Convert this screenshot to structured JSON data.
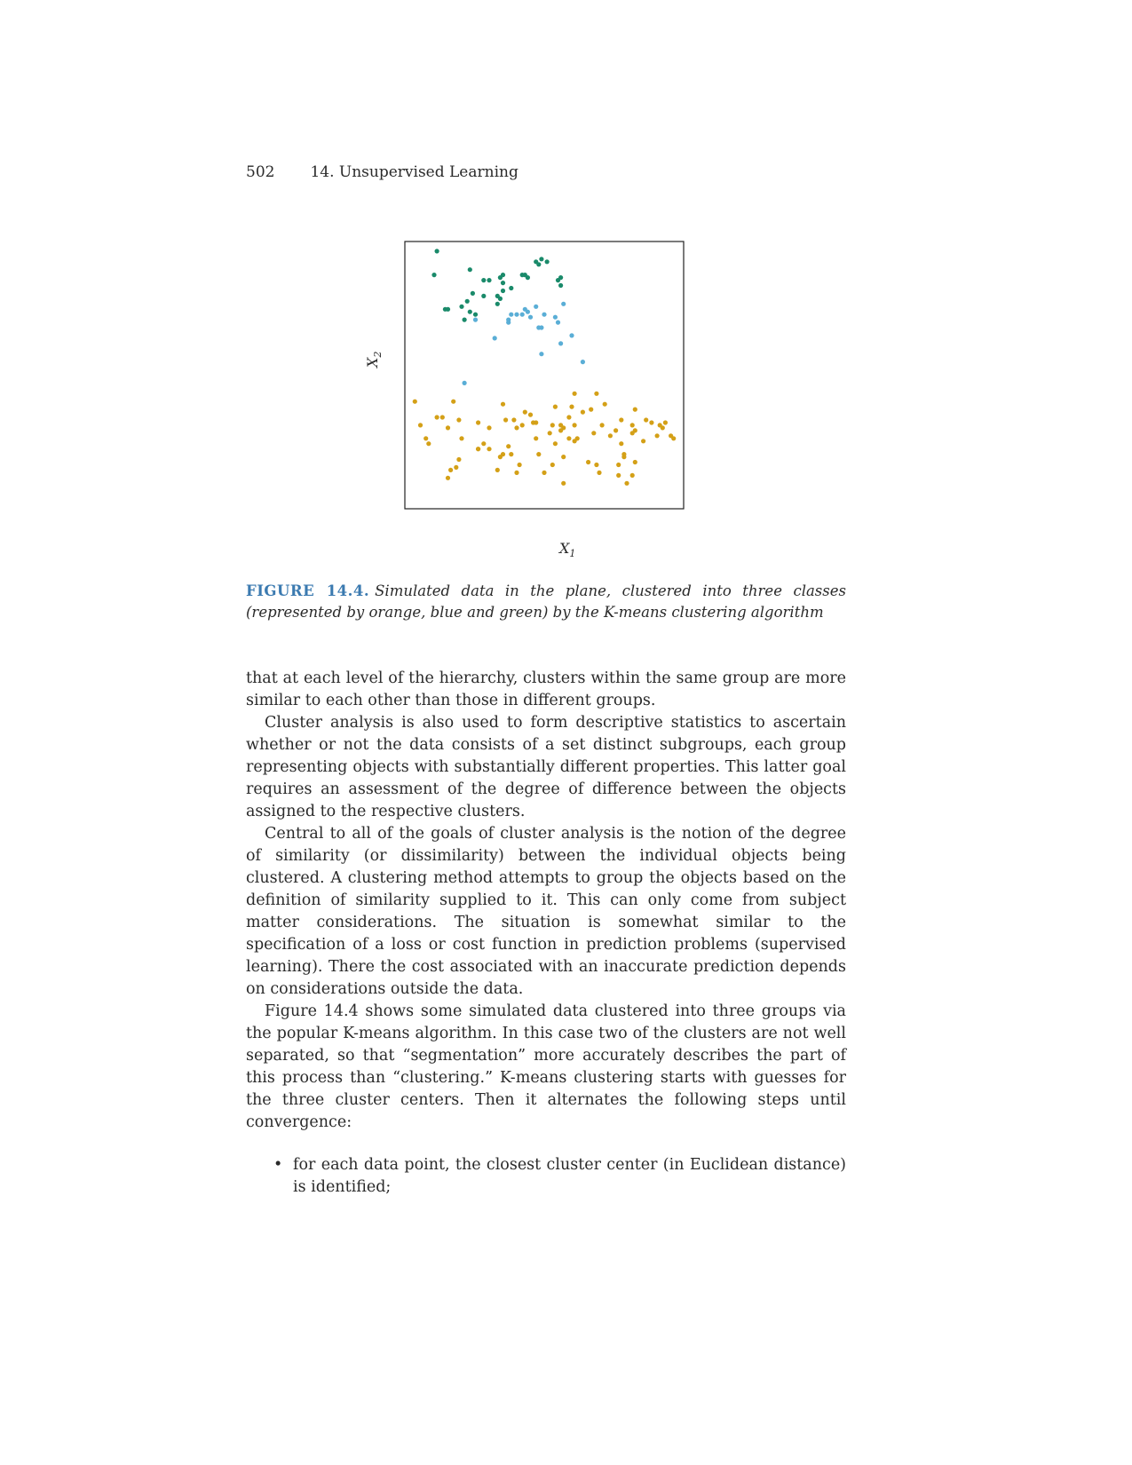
{
  "header": {
    "page_number": "502",
    "chapter": "14.  Unsupervised Learning"
  },
  "figure": {
    "xlabel_var": "X",
    "xlabel_sub": "1",
    "ylabel_var": "X",
    "ylabel_sub": "2",
    "caption_label": "FIGURE 14.4.",
    "caption_text": "Simulated data in the plane, clustered into three classes (represented by orange, blue and green) by the K-means clustering algorithm"
  },
  "colors": {
    "green": "#1a8a6a",
    "blue": "#5aaed6",
    "orange": "#d4a017",
    "caption_blue": "#3b7ab0"
  },
  "chart_data": {
    "type": "scatter",
    "xlabel": "X1",
    "ylabel": "X2",
    "xlim": [
      0,
      100
    ],
    "ylim": [
      0,
      100
    ],
    "grid": false,
    "series": [
      {
        "name": "green",
        "color": "#1a8a6a",
        "points": [
          [
            11,
            97
          ],
          [
            10,
            88
          ],
          [
            23,
            90
          ],
          [
            28,
            86
          ],
          [
            30,
            86
          ],
          [
            34,
            87
          ],
          [
            35,
            88
          ],
          [
            43,
            88
          ],
          [
            44,
            87
          ],
          [
            47,
            93
          ],
          [
            51,
            93
          ],
          [
            49,
            94
          ],
          [
            48,
            92
          ],
          [
            56,
            87
          ],
          [
            55,
            86
          ],
          [
            56,
            84
          ],
          [
            35,
            85
          ],
          [
            35,
            82
          ],
          [
            33,
            80
          ],
          [
            34,
            79
          ],
          [
            24,
            81
          ],
          [
            28,
            80
          ],
          [
            22,
            78
          ],
          [
            20,
            76
          ],
          [
            15,
            75
          ],
          [
            14,
            75
          ],
          [
            23,
            74
          ],
          [
            25,
            73
          ],
          [
            21,
            71
          ],
          [
            33,
            77
          ],
          [
            38,
            83
          ],
          [
            42,
            88
          ]
        ]
      },
      {
        "name": "blue",
        "color": "#5aaed6",
        "points": [
          [
            38,
            73
          ],
          [
            37,
            71
          ],
          [
            37,
            70
          ],
          [
            40,
            73
          ],
          [
            42,
            73
          ],
          [
            43,
            75
          ],
          [
            44,
            74
          ],
          [
            45,
            72
          ],
          [
            47,
            76
          ],
          [
            50,
            73
          ],
          [
            48,
            68
          ],
          [
            49,
            68
          ],
          [
            54,
            72
          ],
          [
            55,
            70
          ],
          [
            57,
            77
          ],
          [
            60,
            65
          ],
          [
            56,
            62
          ],
          [
            49,
            58
          ],
          [
            32,
            64
          ],
          [
            25,
            71
          ],
          [
            64,
            55
          ],
          [
            21,
            47
          ]
        ]
      },
      {
        "name": "orange",
        "color": "#d4a017",
        "points": [
          [
            3,
            40
          ],
          [
            5,
            31
          ],
          [
            7,
            26
          ],
          [
            8,
            24
          ],
          [
            11,
            34
          ],
          [
            13,
            34
          ],
          [
            15,
            30
          ],
          [
            17,
            40
          ],
          [
            19,
            33
          ],
          [
            20,
            26
          ],
          [
            19,
            18
          ],
          [
            18,
            15
          ],
          [
            16,
            14
          ],
          [
            15,
            11
          ],
          [
            26,
            32
          ],
          [
            26,
            22
          ],
          [
            26,
            22
          ],
          [
            28,
            24
          ],
          [
            30,
            22
          ],
          [
            30,
            30
          ],
          [
            33,
            14
          ],
          [
            34,
            19
          ],
          [
            35,
            39
          ],
          [
            35,
            20
          ],
          [
            36,
            33
          ],
          [
            37,
            23
          ],
          [
            38,
            20
          ],
          [
            39,
            33
          ],
          [
            40,
            30
          ],
          [
            40,
            13
          ],
          [
            41,
            16
          ],
          [
            42,
            31
          ],
          [
            43,
            36
          ],
          [
            45,
            35
          ],
          [
            46,
            32
          ],
          [
            47,
            32
          ],
          [
            47,
            26
          ],
          [
            48,
            20
          ],
          [
            50,
            13
          ],
          [
            52,
            28
          ],
          [
            53,
            31
          ],
          [
            53,
            16
          ],
          [
            54,
            24
          ],
          [
            54,
            38
          ],
          [
            56,
            29
          ],
          [
            56,
            31
          ],
          [
            57,
            30
          ],
          [
            57,
            19
          ],
          [
            57,
            9
          ],
          [
            59,
            34
          ],
          [
            59,
            26
          ],
          [
            60,
            38
          ],
          [
            61,
            43
          ],
          [
            61,
            31
          ],
          [
            61,
            25
          ],
          [
            62,
            26
          ],
          [
            64,
            36
          ],
          [
            66,
            17
          ],
          [
            67,
            37
          ],
          [
            68,
            28
          ],
          [
            69,
            43
          ],
          [
            69,
            16
          ],
          [
            70,
            13
          ],
          [
            71,
            31
          ],
          [
            72,
            39
          ],
          [
            74,
            27
          ],
          [
            76,
            29
          ],
          [
            77,
            16
          ],
          [
            77,
            12
          ],
          [
            78,
            24
          ],
          [
            78,
            33
          ],
          [
            79,
            20
          ],
          [
            79,
            19
          ],
          [
            80,
            9
          ],
          [
            82,
            12
          ],
          [
            82,
            28
          ],
          [
            82,
            31
          ],
          [
            83,
            29
          ],
          [
            83,
            17
          ],
          [
            83,
            37
          ],
          [
            86,
            25
          ],
          [
            87,
            33
          ],
          [
            89,
            32
          ],
          [
            91,
            27
          ],
          [
            93,
            30
          ],
          [
            92,
            31
          ],
          [
            94,
            32
          ],
          [
            96,
            27
          ],
          [
            97,
            26
          ]
        ]
      }
    ]
  },
  "body": {
    "p1": "that at each level of the hierarchy, clusters within the same group are more similar to each other than those in different groups.",
    "p2": "Cluster analysis is also used to form descriptive statistics to ascertain whether or not the data consists of a set distinct subgroups, each group representing objects with substantially different properties. This latter goal requires an assessment of the degree of difference between the objects assigned to the respective clusters.",
    "p3": "Central to all of the goals of cluster analysis is the notion of the degree of similarity (or dissimilarity) between the individual objects being clustered. A clustering method attempts to group the objects based on the definition of similarity supplied to it. This can only come from subject matter considerations. The situation is somewhat similar to the specification of a loss or cost function in prediction problems (supervised learning). There the cost associated with an inaccurate prediction depends on considerations outside the data.",
    "p4": "Figure 14.4 shows some simulated data clustered into three groups via the popular K-means algorithm. In this case two of the clusters are not well separated, so that “segmentation” more accurately describes the part of this process than “clustering.” K-means clustering starts with guesses for the three cluster centers. Then it alternates the following steps until convergence:",
    "bullet_mark": "•",
    "bullet1": "for each data point, the closest cluster center (in Euclidean distance) is identified;"
  }
}
